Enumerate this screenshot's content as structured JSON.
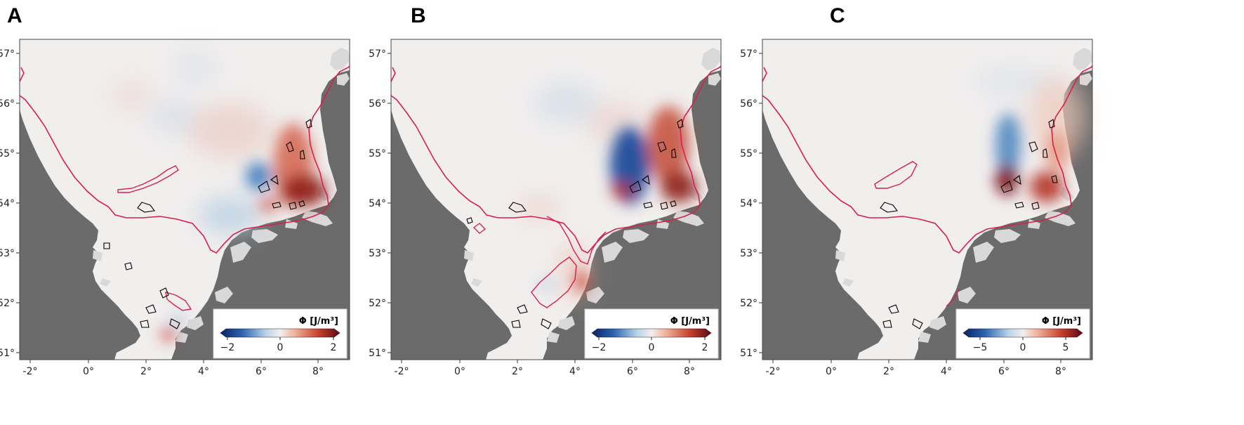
{
  "panels": [
    {
      "label": "A",
      "colorbar": {
        "title": "Φ [J/m³]",
        "ticks": [
          "−2",
          "0",
          "2"
        ]
      }
    },
    {
      "label": "B",
      "colorbar": {
        "title": "Φ [J/m³]",
        "ticks": [
          "−2",
          "0",
          "2"
        ]
      }
    },
    {
      "label": "C",
      "colorbar": {
        "title": "Φ [J/m³]",
        "ticks": [
          "−5",
          "0",
          "5"
        ]
      }
    }
  ],
  "axes": {
    "lon_ticks": [
      "-2°",
      "0°",
      "2°",
      "4°",
      "6°",
      "8°"
    ],
    "lat_ticks": [
      "57°",
      "56°",
      "55°",
      "54°",
      "53°",
      "52°",
      "51°"
    ]
  },
  "colors": {
    "land": "#6b6b6b",
    "sea": "#f1eeee",
    "contour": "#d6204e",
    "outline": "#000000",
    "colormap": [
      "#0a2266",
      "#2a63b0",
      "#b9d3e8",
      "#f2eeee",
      "#f0b39c",
      "#c8412f",
      "#5c0812"
    ]
  }
}
